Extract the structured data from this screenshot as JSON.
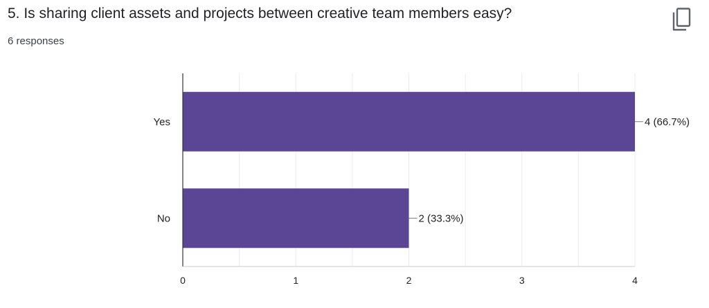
{
  "question": {
    "title": "5. Is sharing client assets and projects between creative team members easy?",
    "responses": "6 responses"
  },
  "icons": {
    "copy": "copy-icon"
  },
  "colors": {
    "bar": "#5b4595",
    "title": "#202124",
    "axis_text": "#222222",
    "grid": "#ebebeb",
    "axis_line": "#333333"
  },
  "chart_data": {
    "type": "bar",
    "orientation": "horizontal",
    "categories": [
      "Yes",
      "No"
    ],
    "values": [
      4,
      2
    ],
    "data_labels": [
      "4 (66.7%)",
      "2 (33.3%)"
    ],
    "xlim": [
      0,
      4
    ],
    "xticks": [
      "0",
      "1",
      "2",
      "3",
      "4"
    ],
    "grid": true,
    "legend": "none"
  }
}
